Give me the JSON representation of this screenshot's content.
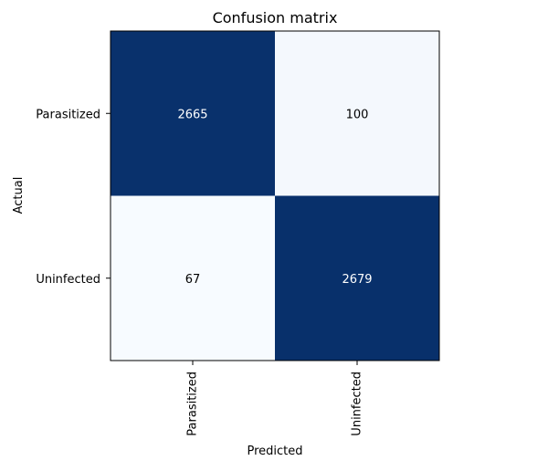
{
  "chart_data": {
    "type": "heatmap",
    "title": "Confusion matrix",
    "xlabel": "Predicted",
    "ylabel": "Actual",
    "x_categories": [
      "Parasitized",
      "Uninfected"
    ],
    "y_categories": [
      "Parasitized",
      "Uninfected"
    ],
    "values": [
      [
        2665,
        100
      ],
      [
        67,
        2679
      ]
    ],
    "colormap": "Blues",
    "colors": {
      "low": "#f7fbff",
      "high": "#08306b",
      "text_dark": "#000000",
      "text_light": "#ffffff"
    },
    "grid": false,
    "colorbar": false
  }
}
